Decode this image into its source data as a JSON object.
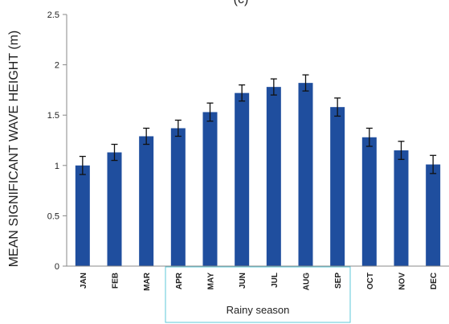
{
  "chart_data": {
    "type": "bar",
    "title": "(c)",
    "xlabel": "",
    "ylabel": "MEAN SIGNIFICANT WAVE HEIGHT (m)",
    "ylim": [
      0,
      2.5
    ],
    "yticks": [
      0,
      0.5,
      1,
      1.5,
      2,
      2.5
    ],
    "ytick_labels": [
      "0",
      "0.5",
      "1",
      "1.5",
      "2",
      "2.5"
    ],
    "grid": false,
    "categories": [
      "JAN",
      "FEB",
      "MAR",
      "APR",
      "MAY",
      "JUN",
      "JUL",
      "AUG",
      "SEP",
      "OCT",
      "NOV",
      "DEC"
    ],
    "values": [
      1.0,
      1.13,
      1.29,
      1.37,
      1.53,
      1.72,
      1.78,
      1.82,
      1.58,
      1.28,
      1.15,
      1.01
    ],
    "error": [
      0.09,
      0.08,
      0.08,
      0.08,
      0.09,
      0.08,
      0.08,
      0.08,
      0.09,
      0.09,
      0.09,
      0.09
    ],
    "bar_color": "#1f4e9e",
    "annotation": {
      "label": "Rainy season",
      "start_category": "APR",
      "end_category": "SEP",
      "border_color": "#5ec8d8"
    }
  }
}
